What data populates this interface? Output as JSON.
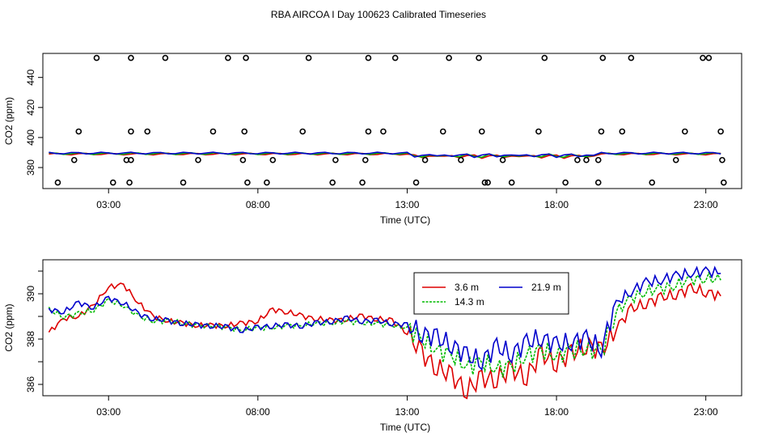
{
  "title": "RBA AIRCOA I  Day 100623  Calibrated Timeseries",
  "colors": {
    "s36": "#dd0000",
    "s143": "#00bb00",
    "s219": "#0000cc",
    "axis": "#000000"
  },
  "chart_data": [
    {
      "type": "scatter",
      "title": "",
      "xlabel": "Time (UTC)",
      "ylabel": "CO2 (ppm)",
      "xlim": [
        0.8,
        24.2
      ],
      "ylim": [
        366,
        456
      ],
      "xticks": [
        3,
        8,
        13,
        18,
        23
      ],
      "xtick_labels": [
        "03:00",
        "08:00",
        "13:00",
        "18:00",
        "23:00"
      ],
      "yticks": [
        380,
        400,
        420,
        440
      ],
      "yticks_labeled": [
        380,
        400,
        420,
        440
      ],
      "flag_points": {
        "name": "calibration flags",
        "x": [
          1.3,
          1.85,
          2.0,
          2.6,
          3.15,
          3.6,
          3.7,
          3.75,
          3.75,
          3.75,
          4.3,
          4.9,
          5.5,
          6.0,
          6.5,
          7.0,
          7.5,
          7.55,
          7.6,
          7.65,
          8.3,
          8.5,
          9.5,
          9.7,
          10.5,
          10.6,
          11.5,
          11.6,
          11.7,
          11.7,
          12.2,
          12.6,
          13.3,
          13.6,
          14.2,
          14.4,
          14.8,
          15.4,
          15.5,
          15.6,
          15.7,
          16.2,
          16.5,
          17.4,
          17.6,
          18.3,
          18.7,
          19.0,
          19.4,
          19.4,
          19.5,
          19.55,
          20.2,
          20.5,
          21.2,
          22.0,
          22.3,
          22.9,
          23.1,
          23.5,
          23.55,
          23.6
        ],
        "y": [
          370,
          385,
          404,
          453,
          370,
          385,
          370,
          385,
          404,
          453,
          404,
          453,
          370,
          385,
          404,
          453,
          385,
          404,
          453,
          370,
          370,
          385,
          404,
          453,
          370,
          385,
          370,
          385,
          404,
          453,
          404,
          453,
          370,
          385,
          404,
          453,
          385,
          453,
          404,
          370,
          370,
          385,
          370,
          404,
          453,
          370,
          385,
          385,
          370,
          385,
          404,
          453,
          404,
          453,
          370,
          385,
          404,
          453,
          453,
          404,
          385,
          370
        ]
      },
      "series": [
        {
          "name": "3.6 m",
          "values_summary": "approximately 389 ppm throughout (compressed scale)"
        },
        {
          "name": "14.3 m",
          "values_summary": "approximately 389 ppm throughout (compressed scale)"
        },
        {
          "name": "21.9 m",
          "values_summary": "approximately 389 ppm throughout (compressed scale)"
        }
      ]
    },
    {
      "type": "line",
      "title": "",
      "xlabel": "Time (UTC)",
      "ylabel": "CO2 (ppm)",
      "xlim": [
        0.8,
        24.2
      ],
      "ylim": [
        385.5,
        391.5
      ],
      "xticks": [
        3,
        8,
        13,
        18,
        23
      ],
      "xtick_labels": [
        "03:00",
        "08:00",
        "13:00",
        "18:00",
        "23:00"
      ],
      "yticks": [
        386,
        387,
        388,
        389,
        390,
        391
      ],
      "yticks_labeled": [
        386,
        388,
        390
      ],
      "legend": {
        "position": "top-center",
        "labels": [
          "3.6 m",
          "14.3 m",
          "21.9 m"
        ]
      },
      "x": [
        1.0,
        1.5,
        2.0,
        2.5,
        3.0,
        3.5,
        4.0,
        4.5,
        5.0,
        5.5,
        6.0,
        6.5,
        7.0,
        7.5,
        8.0,
        8.5,
        9.0,
        9.5,
        10.0,
        10.5,
        11.0,
        11.5,
        12.0,
        12.5,
        13.0,
        13.5,
        14.0,
        14.5,
        15.0,
        15.5,
        16.0,
        16.5,
        17.0,
        17.5,
        18.0,
        18.5,
        19.0,
        19.5,
        20.0,
        20.5,
        21.0,
        21.5,
        22.0,
        22.5,
        23.0,
        23.5
      ],
      "series": [
        {
          "name": "3.6 m",
          "values": [
            388.3,
            388.9,
            389.0,
            389.5,
            390.3,
            390.4,
            389.6,
            389.0,
            388.8,
            388.7,
            388.6,
            388.6,
            388.6,
            388.7,
            388.8,
            389.3,
            389.2,
            389.0,
            388.9,
            388.8,
            388.9,
            389.0,
            388.9,
            388.8,
            388.3,
            387.3,
            386.8,
            386.3,
            385.8,
            386.2,
            386.3,
            386.6,
            386.4,
            387.3,
            387.0,
            387.3,
            387.8,
            387.4,
            388.5,
            389.3,
            389.6,
            389.8,
            390.0,
            390.2,
            390.1,
            389.9
          ]
        },
        {
          "name": "14.3 m",
          "values": [
            389.3,
            389.0,
            389.1,
            389.3,
            389.7,
            389.5,
            389.0,
            388.8,
            388.8,
            388.7,
            388.6,
            388.6,
            388.5,
            388.4,
            388.5,
            388.5,
            388.6,
            388.6,
            388.7,
            388.7,
            388.8,
            388.7,
            388.7,
            388.6,
            388.5,
            388.0,
            387.5,
            387.3,
            386.8,
            387.0,
            386.7,
            386.8,
            387.3,
            387.5,
            387.3,
            387.5,
            387.6,
            387.4,
            389.2,
            389.8,
            390.1,
            390.2,
            390.4,
            390.6,
            390.7,
            390.6
          ]
        },
        {
          "name": "21.9 m",
          "values": [
            389.3,
            389.2,
            389.6,
            389.4,
            389.8,
            389.6,
            389.1,
            388.9,
            388.8,
            388.7,
            388.6,
            388.6,
            388.5,
            388.4,
            388.5,
            388.6,
            388.6,
            388.6,
            388.7,
            388.8,
            388.9,
            388.8,
            388.8,
            388.7,
            388.6,
            388.3,
            388.0,
            387.8,
            387.2,
            387.1,
            387.6,
            387.4,
            387.8,
            388.1,
            387.7,
            387.9,
            388.0,
            387.6,
            389.6,
            390.1,
            390.5,
            390.6,
            390.8,
            390.9,
            391.0,
            390.9
          ]
        }
      ]
    }
  ]
}
